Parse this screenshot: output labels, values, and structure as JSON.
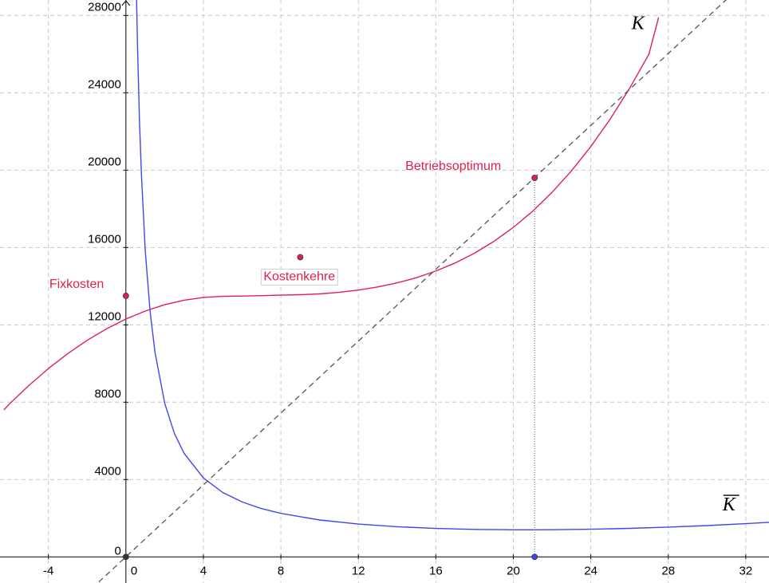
{
  "chart_data": {
    "type": "line",
    "title": "",
    "xlabel": "",
    "ylabel": "",
    "xlim": [
      -6.5,
      33.2
    ],
    "ylim": [
      -1350,
      28800
    ],
    "grid": true,
    "x_ticks": [
      "-4",
      "0",
      "4",
      "8",
      "12",
      "16",
      "20",
      "24",
      "28",
      "32"
    ],
    "y_ticks": [
      "0",
      "4000",
      "8000",
      "12000",
      "16000",
      "20000",
      "24000",
      "28000"
    ],
    "series": [
      {
        "name": "K",
        "color": "#e0214f",
        "style": "solid",
        "x": [
          -6.3,
          -6,
          -5,
          -4,
          -3,
          -2,
          -1,
          0,
          1,
          2,
          3,
          4,
          5,
          6,
          7,
          8,
          9,
          10,
          11,
          12,
          13,
          14,
          15,
          16,
          17,
          18,
          19,
          20,
          21,
          22,
          23,
          24,
          25,
          26,
          27,
          27.5
        ],
        "values": [
          7605,
          7920,
          8875,
          9740,
          10515,
          11200,
          11795,
          12300,
          12715,
          13040,
          13275,
          13420,
          13475,
          13490,
          13510,
          13535,
          13560,
          13600,
          13680,
          13800,
          13960,
          14170,
          14440,
          14780,
          15200,
          15710,
          16320,
          17040,
          17880,
          18850,
          19960,
          21220,
          22640,
          24230,
          26000,
          27900
        ]
      },
      {
        "name": "K̄",
        "color": "#4444ee",
        "style": "solid",
        "x": [
          0.55,
          0.6,
          0.7,
          0.8,
          1,
          1.25,
          1.5,
          2,
          2.5,
          3,
          4,
          5,
          6,
          7,
          8,
          10,
          12,
          14,
          16,
          18,
          20,
          21.1,
          22,
          24,
          26,
          28,
          30,
          32,
          33.2
        ],
        "values": [
          28800,
          26400,
          22600,
          19770,
          15830,
          12680,
          10580,
          7960,
          6395,
          5360,
          4080,
          3330,
          2840,
          2500,
          2250,
          1910,
          1700,
          1560,
          1470,
          1420,
          1400,
          1400,
          1405,
          1430,
          1475,
          1540,
          1620,
          1720,
          1790
        ]
      },
      {
        "name": "",
        "color": "#555555",
        "style": "dashed",
        "x": [
          -1.4,
          31.3
        ],
        "values": [
          -1300,
          29100
        ]
      }
    ],
    "points": [
      {
        "label": "Fixkosten",
        "x": 0,
        "y": 13500,
        "color": "#e0214f"
      },
      {
        "label": "Kostenkehre",
        "x": 9,
        "y": 15500,
        "color": "#e0214f"
      },
      {
        "label": "Betriebsoptimum",
        "x": 21.1,
        "y": 19600,
        "color": "#e0214f"
      },
      {
        "label": "",
        "x": 21.1,
        "y": 0,
        "color": "#4444ee"
      },
      {
        "label": "",
        "x": 0,
        "y": 0,
        "color": "#333333"
      }
    ],
    "curve_labels": [
      {
        "text": "K",
        "series": "K",
        "overline": false
      },
      {
        "text": "K",
        "series": "K̄",
        "overline": true
      }
    ]
  }
}
